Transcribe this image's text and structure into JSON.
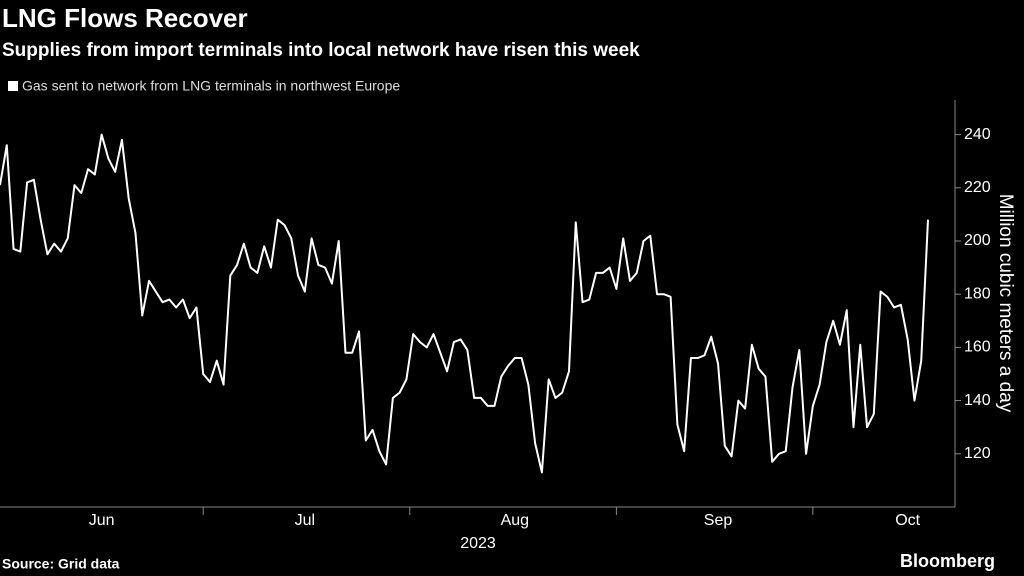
{
  "chart_data": {
    "type": "line",
    "title": "LNG Flows Recover",
    "subtitle": "Supplies from import terminals into local network have risen this week",
    "source": "Source: Grid data",
    "brand": "Bloomberg",
    "xlabel": "2023",
    "ylabel": "Million cubic meters a day",
    "categories": [
      null,
      null,
      null,
      null,
      null,
      null,
      null,
      null,
      null,
      null,
      null,
      null,
      null,
      null,
      null,
      "Jun",
      null,
      null,
      null,
      null,
      null,
      null,
      null,
      null,
      null,
      null,
      null,
      null,
      null,
      null,
      null,
      null,
      null,
      null,
      null,
      null,
      null,
      null,
      null,
      null,
      null,
      null,
      null,
      null,
      null,
      "Jul",
      null,
      null,
      null,
      null,
      null,
      null,
      null,
      null,
      null,
      null,
      null,
      null,
      null,
      null,
      null,
      null,
      null,
      null,
      null,
      null,
      null,
      null,
      null,
      null,
      null,
      null,
      null,
      null,
      null,
      null,
      "Aug",
      null,
      null,
      null,
      null,
      null,
      null,
      null,
      null,
      null,
      null,
      null,
      null,
      null,
      null,
      null,
      null,
      null,
      null,
      null,
      null,
      null,
      null,
      null,
      null,
      null,
      null,
      null,
      null,
      null,
      "Sep",
      null,
      null,
      null,
      null,
      null,
      null,
      null,
      null,
      null,
      null,
      null,
      null,
      null,
      null,
      null,
      null,
      null,
      null,
      null,
      null,
      null,
      null,
      null,
      null,
      null,
      null,
      null,
      "Oct",
      null,
      null,
      null
    ],
    "series": [
      {
        "name": "Gas sent to network from LNG terminals in northwest Europe",
        "color": "#ffffff",
        "values": [
          221,
          236,
          197,
          196,
          222,
          223,
          208,
          195,
          199,
          196,
          201,
          221,
          218,
          227,
          225,
          240,
          231,
          226,
          238,
          216,
          203,
          172,
          185,
          181,
          177,
          178,
          175,
          178,
          171,
          175,
          150,
          147,
          155,
          146,
          187,
          191,
          199,
          190,
          188,
          198,
          190,
          208,
          206,
          201,
          187,
          181,
          201,
          191,
          190,
          184,
          200,
          158,
          158,
          166,
          125,
          129,
          121,
          116,
          141,
          143,
          148,
          165,
          162,
          160,
          165,
          158,
          151,
          162,
          163,
          159,
          141,
          141,
          138,
          138,
          149,
          153,
          156,
          156,
          146,
          124,
          113,
          148,
          141,
          143,
          151,
          207,
          177,
          178,
          188,
          188,
          190,
          182,
          201,
          185,
          188,
          200,
          202,
          180,
          180,
          179,
          131,
          121,
          156,
          156,
          157,
          164,
          154,
          123,
          119,
          140,
          137,
          161,
          152,
          149,
          117,
          120,
          121,
          145,
          159,
          120,
          138,
          146,
          162,
          170,
          161,
          174,
          130,
          161,
          130,
          135,
          181,
          179,
          175,
          176,
          163,
          140,
          155,
          208
        ]
      }
    ],
    "ylim": [
      100,
      253
    ],
    "yticks": [
      120,
      140,
      160,
      180,
      200,
      220,
      240
    ],
    "grid": false
  }
}
